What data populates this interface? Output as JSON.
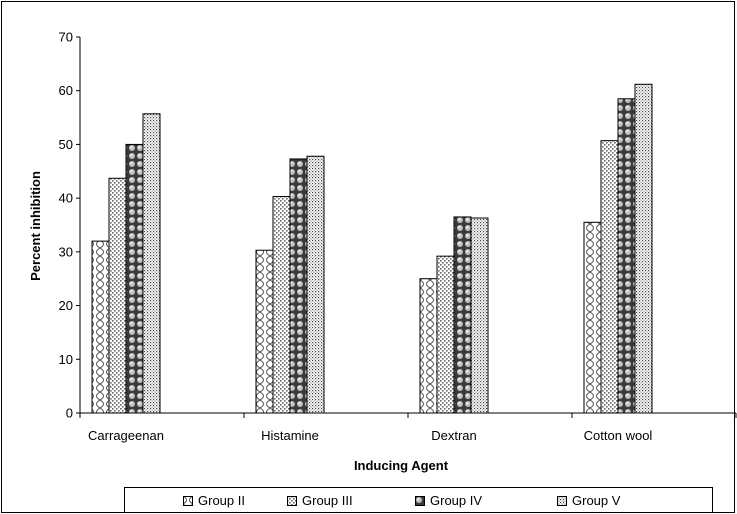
{
  "chart_data": {
    "type": "bar",
    "title": "",
    "xlabel": "Inducing Agent",
    "ylabel": "Percent inhibition",
    "ylim": [
      0,
      70
    ],
    "yticks": [
      "0",
      "10",
      "20",
      "30",
      "40",
      "50",
      "60",
      "70"
    ],
    "categories": [
      "Carrageenan",
      "Histamine",
      "Dextran",
      "Cotton wool"
    ],
    "series": [
      {
        "name": "Group II",
        "values": [
          32,
          30.3,
          25,
          35.5
        ],
        "pattern": "waves"
      },
      {
        "name": "Group III",
        "values": [
          43.7,
          40.3,
          29.2,
          50.7
        ],
        "pattern": "dots"
      },
      {
        "name": "Group IV",
        "values": [
          50,
          47.3,
          36.5,
          58.5
        ],
        "pattern": "beads"
      },
      {
        "name": "Group V",
        "values": [
          55.7,
          47.8,
          36.3,
          61.2
        ],
        "pattern": "fine"
      }
    ],
    "grid": false,
    "legend_position": "bottom"
  }
}
